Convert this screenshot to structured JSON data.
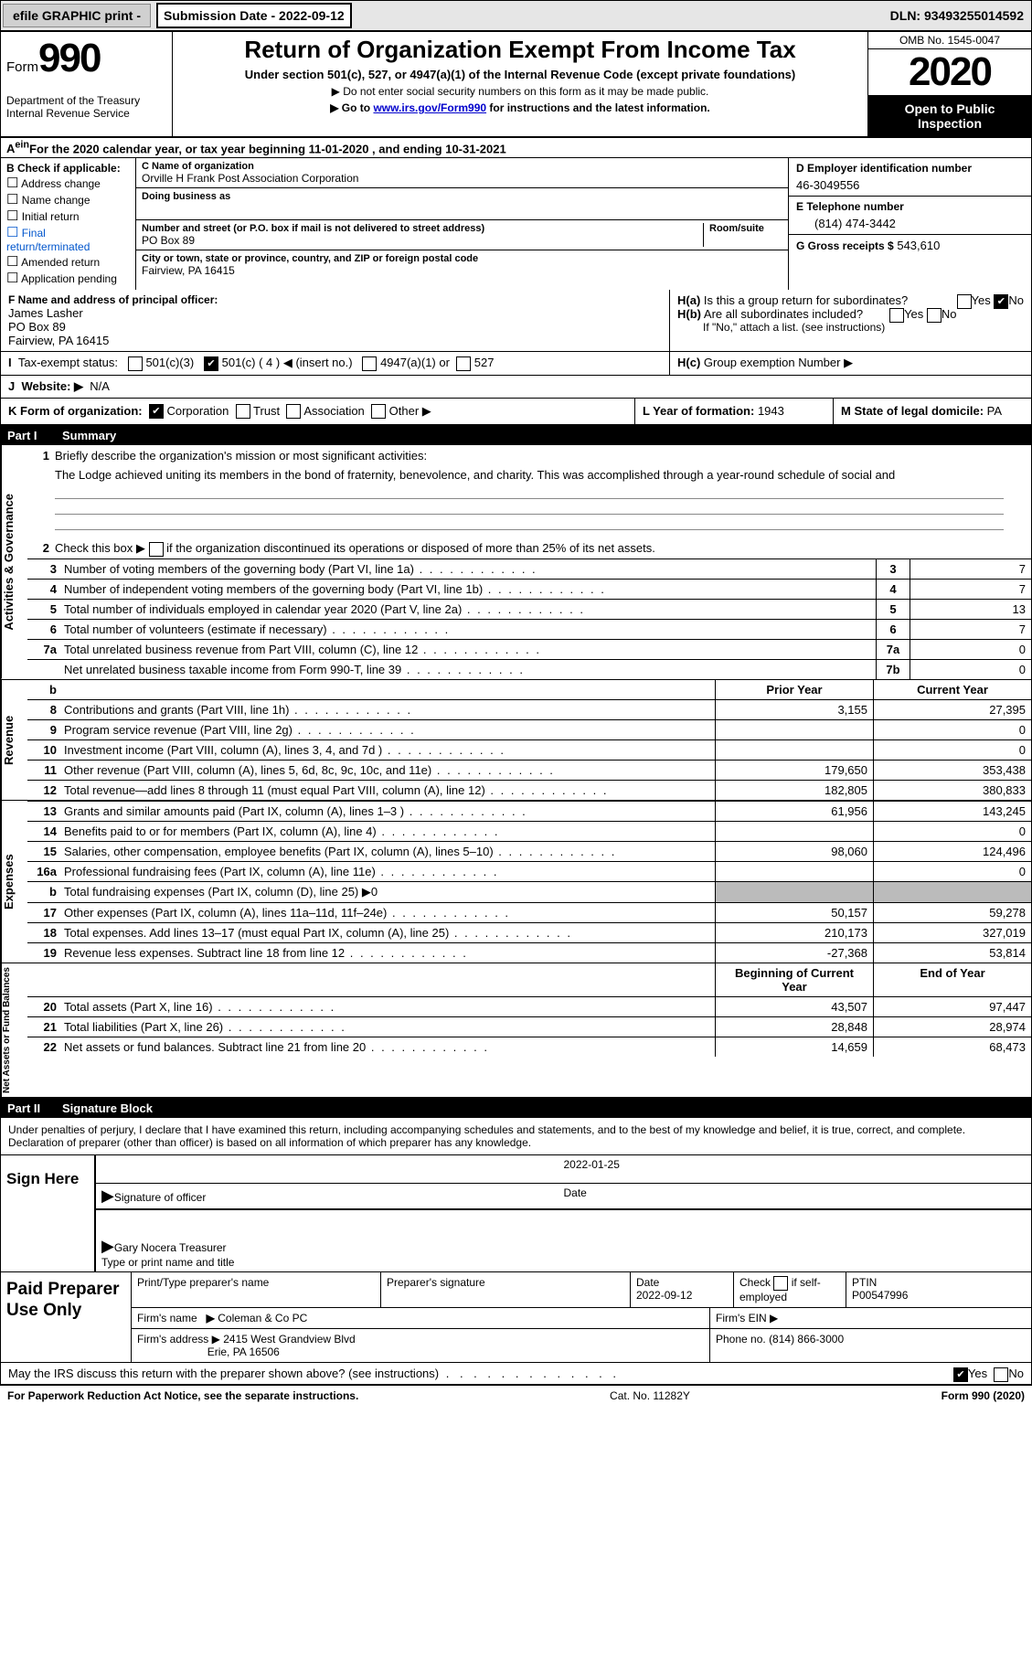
{
  "topbar": {
    "efile": "efile GRAPHIC print -",
    "subdate": "Submission Date - 2022-09-12",
    "dln": "DLN: 93493255014592"
  },
  "header": {
    "form": "Form",
    "big": "990",
    "dept": "Department of the Treasury",
    "irs": "Internal Revenue Service",
    "title": "Return of Organization Exempt From Income Tax",
    "sub": "Under section 501(c), 527, or 4947(a)(1) of the Internal Revenue Code (except private foundations)",
    "l1": "▶ Do not enter social security numbers on this form as it may be made public.",
    "l2a": "▶ Go to ",
    "link": "www.irs.gov/Form990",
    "l2b": " for instructions and the latest information.",
    "omb": "OMB No. 1545-0047",
    "year": "2020",
    "otpi": "Open to Public Inspection"
  },
  "rowA": "For the 2020 calendar year, or tax year beginning 11-01-2020     , and ending 10-31-2021",
  "B": {
    "hdr": "B Check if applicable:",
    "a": "Address change",
    "b": "Name change",
    "c": "Initial return",
    "d": "Final return/terminated",
    "e": "Amended return",
    "f": "Application pending"
  },
  "C": {
    "lbl": "C Name of organization",
    "name": "Orville H Frank Post Association Corporation",
    "dba": "Doing business as",
    "addr_lbl": "Number and street (or P.O. box if mail is not delivered to street address)",
    "room": "Room/suite",
    "addr": "PO Box 89",
    "city_lbl": "City or town, state or province, country, and ZIP or foreign postal code",
    "city": "Fairview, PA   16415"
  },
  "D": {
    "lbl": "D Employer identification number",
    "val": "46-3049556"
  },
  "E": {
    "lbl": "E Telephone number",
    "val": "(814) 474-3442"
  },
  "G": {
    "lbl": "G Gross receipts $",
    "val": "543,610"
  },
  "F": {
    "lbl": "F  Name and address of principal officer:",
    "name": "James Lasher",
    "addr": "PO Box 89",
    "city": "Fairview, PA  16415"
  },
  "H": {
    "a": "Is this a group return for subordinates?",
    "b": "Are all subordinates included?",
    "c": "Group exemption Number ▶",
    "yes": "Yes",
    "no": "No",
    "note": "If \"No,\" attach a list. (see instructions)",
    "Ha": "H(a)",
    "Hb": "H(b)",
    "Hc": "H(c)"
  },
  "I": {
    "lbl": "Tax-exempt status:",
    "a": "501(c)(3)",
    "b": "501(c) ( 4 ) ◀ (insert no.)",
    "c": "4947(a)(1) or",
    "d": "527",
    "num": "I"
  },
  "J": {
    "lbl": "Website: ▶",
    "val": "N/A",
    "num": "J"
  },
  "K": {
    "lbl": "K Form of organization:",
    "a": "Corporation",
    "b": "Trust",
    "c": "Association",
    "d": "Other ▶"
  },
  "L": {
    "lbl": "L Year of formation:",
    "val": "1943"
  },
  "M": {
    "lbl": "M State of legal domicile:",
    "val": "PA"
  },
  "part1": {
    "num": "Part I",
    "title": "Summary"
  },
  "q1": {
    "n": "1",
    "t": "Briefly describe the organization's mission or most significant activities:",
    "desc": "The Lodge achieved uniting its members in the bond of fraternity, benevolence, and charity. This was accomplished through a year-round schedule of social and"
  },
  "q2": {
    "n": "2",
    "t": "Check this box ▶",
    "t2": " if the organization discontinued its operations or disposed of more than 25% of its net assets."
  },
  "rows_ag": [
    {
      "n": "3",
      "t": "Number of voting members of the governing body (Part VI, line 1a)",
      "box": "3",
      "v": "7"
    },
    {
      "n": "4",
      "t": "Number of independent voting members of the governing body (Part VI, line 1b)",
      "box": "4",
      "v": "7"
    },
    {
      "n": "5",
      "t": "Total number of individuals employed in calendar year 2020 (Part V, line 2a)",
      "box": "5",
      "v": "13"
    },
    {
      "n": "6",
      "t": "Total number of volunteers (estimate if necessary)",
      "box": "6",
      "v": "7"
    },
    {
      "n": "7a",
      "t": "Total unrelated business revenue from Part VIII, column (C), line 12",
      "box": "7a",
      "v": "0"
    },
    {
      "n": "",
      "t": "Net unrelated business taxable income from Form 990-T, line 39",
      "box": "7b",
      "v": "0"
    }
  ],
  "labels": {
    "ag": "Activities & Governance",
    "rev": "Revenue",
    "exp": "Expenses",
    "na": "Net Assets or Fund Balances",
    "b": "b"
  },
  "py": "Prior Year",
  "cy": "Current Year",
  "bcy": "Beginning of Current Year",
  "eoy": "End of Year",
  "rows_rev": [
    {
      "n": "8",
      "t": "Contributions and grants (Part VIII, line 1h)",
      "p": "3,155",
      "c": "27,395"
    },
    {
      "n": "9",
      "t": "Program service revenue (Part VIII, line 2g)",
      "p": "",
      "c": "0"
    },
    {
      "n": "10",
      "t": "Investment income (Part VIII, column (A), lines 3, 4, and 7d )",
      "p": "",
      "c": "0"
    },
    {
      "n": "11",
      "t": "Other revenue (Part VIII, column (A), lines 5, 6d, 8c, 9c, 10c, and 11e)",
      "p": "179,650",
      "c": "353,438"
    },
    {
      "n": "12",
      "t": "Total revenue—add lines 8 through 11 (must equal Part VIII, column (A), line 12)",
      "p": "182,805",
      "c": "380,833"
    }
  ],
  "rows_exp": [
    {
      "n": "13",
      "t": "Grants and similar amounts paid (Part IX, column (A), lines 1–3 )",
      "p": "61,956",
      "c": "143,245"
    },
    {
      "n": "14",
      "t": "Benefits paid to or for members (Part IX, column (A), line 4)",
      "p": "",
      "c": "0"
    },
    {
      "n": "15",
      "t": "Salaries, other compensation, employee benefits (Part IX, column (A), lines 5–10)",
      "p": "98,060",
      "c": "124,496"
    },
    {
      "n": "16a",
      "t": "Professional fundraising fees (Part IX, column (A), line 11e)",
      "p": "",
      "c": "0"
    },
    {
      "n": "b",
      "t": "Total fundraising expenses (Part IX, column (D), line 25) ▶0",
      "grey": true
    },
    {
      "n": "17",
      "t": "Other expenses (Part IX, column (A), lines 11a–11d, 11f–24e)",
      "p": "50,157",
      "c": "59,278"
    },
    {
      "n": "18",
      "t": "Total expenses. Add lines 13–17 (must equal Part IX, column (A), line 25)",
      "p": "210,173",
      "c": "327,019"
    },
    {
      "n": "19",
      "t": "Revenue less expenses. Subtract line 18 from line 12",
      "p": "-27,368",
      "c": "53,814"
    }
  ],
  "rows_na": [
    {
      "n": "20",
      "t": "Total assets (Part X, line 16)",
      "p": "43,507",
      "c": "97,447"
    },
    {
      "n": "21",
      "t": "Total liabilities (Part X, line 26)",
      "p": "28,848",
      "c": "28,974"
    },
    {
      "n": "22",
      "t": "Net assets or fund balances. Subtract line 21 from line 20",
      "p": "14,659",
      "c": "68,473"
    }
  ],
  "part2": {
    "num": "Part II",
    "title": "Signature Block"
  },
  "sig": {
    "perjury": "Under penalties of perjury, I declare that I have examined this return, including accompanying schedules and statements, and to the best of my knowledge and belief, it is true, correct, and complete. Declaration of preparer (other than officer) is based on all information of which preparer has any knowledge.",
    "sign": "Sign Here",
    "sigoff": "Signature of officer",
    "date": "Date",
    "dateval": "2022-01-25",
    "name": "Gary Nocera  Treasurer",
    "type": "Type or print name and title"
  },
  "paid": {
    "hdr": "Paid Preparer Use Only",
    "ptp": "Print/Type preparer's name",
    "ps": "Preparer's signature",
    "dt": "Date",
    "dtv": "2022-09-12",
    "chk": "Check",
    "se": "if self-employed",
    "ptin": "PTIN",
    "ptinv": "P00547996",
    "fn": "Firm's name",
    "fnv": "Coleman & Co PC",
    "fein": "Firm's EIN ▶",
    "fa": "Firm's address ▶",
    "fav1": "2415 West Grandview Blvd",
    "fav2": "Erie, PA  16506",
    "ph": "Phone no.",
    "phv": "(814) 866-3000"
  },
  "discuss": "May the IRS discuss this return with the preparer shown above? (see instructions)",
  "foot": {
    "a": "For Paperwork Reduction Act Notice, see the separate instructions.",
    "b": "Cat. No. 11282Y",
    "c": "Form 990 (2020)"
  }
}
